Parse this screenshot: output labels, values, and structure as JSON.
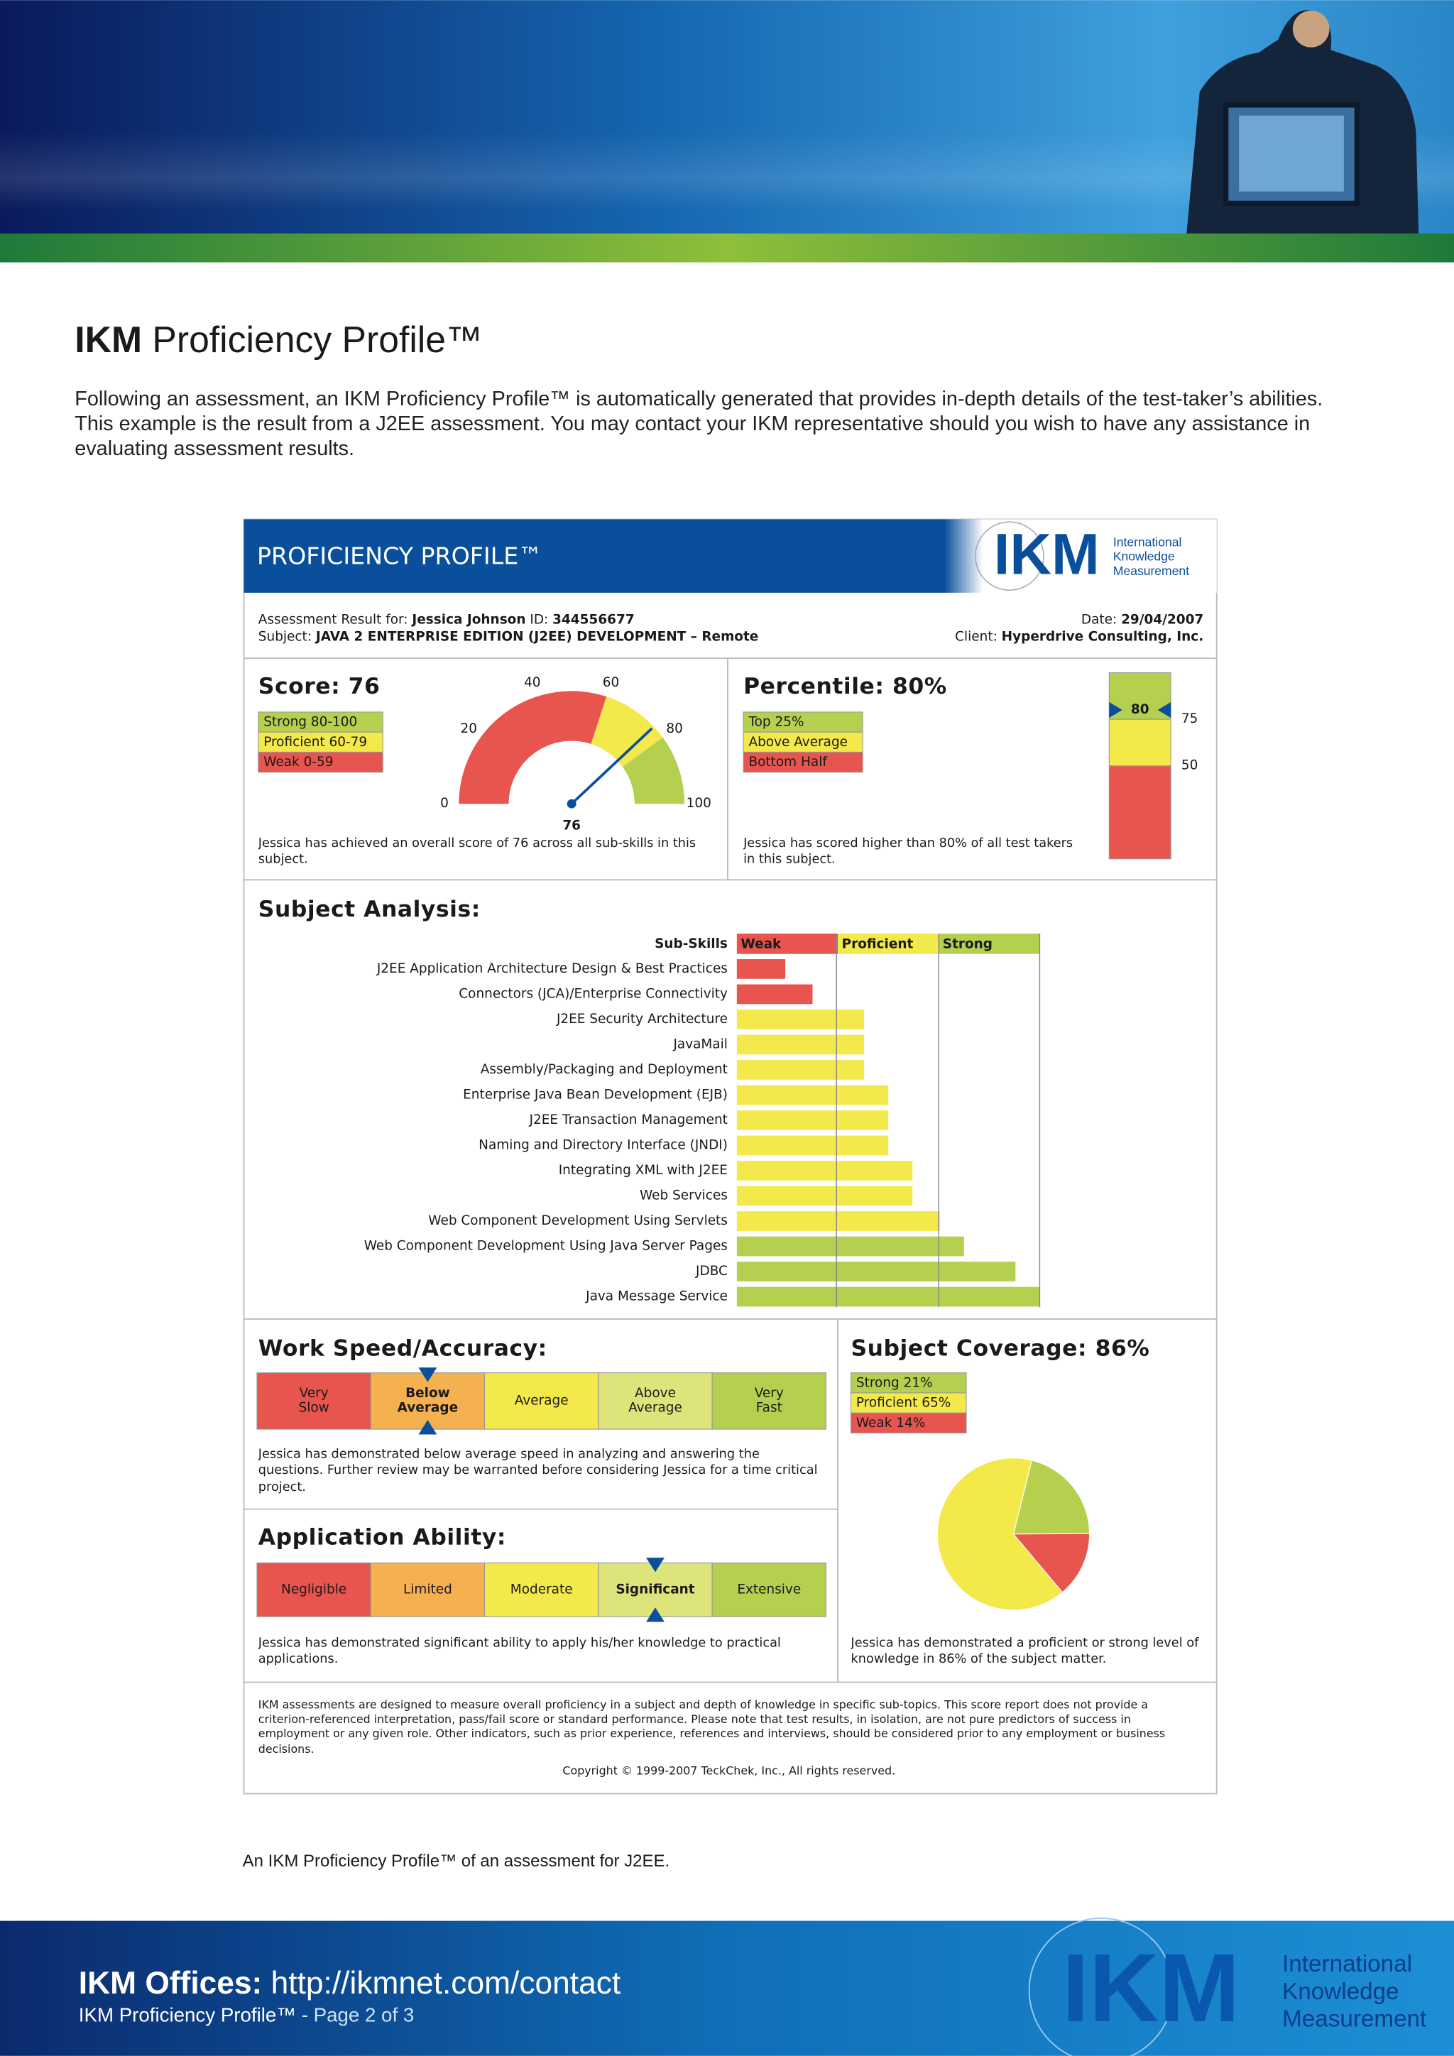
{
  "header": {
    "title_bold": "IKM",
    "title": "Proficiency Profile™",
    "intro": "Following an assessment, an IKM Proficiency Profile™ is automatically generated that provides in-depth details of the test-taker’s abilities. This example is the result from a J2EE assessment. You may contact your IKM representative should you wish to have any assistance in evaluating assessment results."
  },
  "report": {
    "banner": "PROFICIENCY PROFILE™",
    "logo": {
      "mark": "IKM",
      "name": [
        "International",
        "Knowledge",
        "Measurement"
      ]
    },
    "info": {
      "result_label": "Assessment Result for:",
      "name": "Jessica Johnson",
      "id_label": "ID:",
      "id": "344556677",
      "date_label": "Date:",
      "date": "29/04/2007",
      "subject_label": "Subject:",
      "subject": "JAVA 2 ENTERPRISE EDITION (J2EE) DEVELOPMENT – Remote",
      "client_label": "Client:",
      "client": "Hyperdrive Consulting, Inc."
    },
    "score": {
      "title": "Score: 76",
      "legend": [
        {
          "label": "Strong 80-100",
          "color": "#b5cf4f"
        },
        {
          "label": "Proficient 60-79",
          "color": "#f4e94b"
        },
        {
          "label": "Weak 0-59",
          "color": "#e8554e"
        }
      ],
      "gauge": {
        "type": "gauge",
        "value": 76,
        "xlim": [
          0,
          100
        ],
        "ticks": [
          0,
          20,
          40,
          60,
          80,
          100
        ],
        "needle_color": "#0a4f9c",
        "bands": [
          {
            "from": 0,
            "to": 60,
            "color": "#e8554e"
          },
          {
            "from": 60,
            "to": 80,
            "color": "#f4e94b"
          },
          {
            "from": 80,
            "to": 100,
            "color": "#b5cf4f"
          }
        ]
      },
      "note": "Jessica has achieved an overall score of 76 across all sub-skills in this subject."
    },
    "percentile": {
      "title": "Percentile: 80%",
      "legend": [
        {
          "label": "Top 25%",
          "color": "#b5cf4f"
        },
        {
          "label": "Above Average",
          "color": "#f4e94b"
        },
        {
          "label": "Bottom Half",
          "color": "#e8554e"
        }
      ],
      "bar": {
        "type": "level-bar",
        "value": 80,
        "ylim": [
          0,
          100
        ],
        "yticks": [
          50,
          75
        ],
        "marker_color": "#0a4f9c",
        "bands": [
          {
            "from": 0,
            "to": 50,
            "color": "#e8554e"
          },
          {
            "from": 50,
            "to": 75,
            "color": "#f4e94b"
          },
          {
            "from": 75,
            "to": 100,
            "color": "#b5cf4f"
          }
        ]
      },
      "note": "Jessica has scored higher than 80% of all test takers in this subject."
    },
    "analysis": {
      "title": "Subject Analysis:",
      "header": "Sub-Skills",
      "bands": [
        {
          "label": "Weak",
          "color": "#e8554e"
        },
        {
          "label": "Proficient",
          "color": "#f4e94b"
        },
        {
          "label": "Strong",
          "color": "#b5cf4f"
        }
      ],
      "chart": {
        "type": "bar",
        "xlim": [
          0,
          100
        ],
        "categories": [
          "J2EE Application Architecture Design & Best Practices",
          "Connectors (JCA)/Enterprise Connectivity",
          "J2EE Security Architecture",
          "JavaMail",
          "Assembly/Packaging and Deployment",
          "Enterprise Java Bean Development (EJB)",
          "J2EE Transaction Management",
          "Naming and Directory Interface (JNDI)",
          "Integrating XML with J2EE",
          "Web Services",
          "Web Component Development Using Servlets",
          "Web Component Development Using Java Server Pages",
          "JDBC",
          "Java Message Service"
        ],
        "values": [
          16,
          25,
          42,
          42,
          42,
          50,
          50,
          50,
          58,
          58,
          67,
          75,
          92,
          100
        ],
        "colors": [
          "#e8554e",
          "#e8554e",
          "#f4e94b",
          "#f4e94b",
          "#f4e94b",
          "#f4e94b",
          "#f4e94b",
          "#f4e94b",
          "#f4e94b",
          "#f4e94b",
          "#f4e94b",
          "#b5cf4f",
          "#b5cf4f",
          "#b5cf4f"
        ]
      }
    },
    "speed": {
      "title": "Work Speed/Accuracy:",
      "scale": {
        "type": "scale",
        "selected": 1,
        "marker_color": "#0a4f9c",
        "categories": [
          [
            "Very",
            "Slow"
          ],
          [
            "Below",
            "Average"
          ],
          [
            "Average"
          ],
          [
            "Above",
            "Average"
          ],
          [
            "Very",
            "Fast"
          ]
        ],
        "colors": [
          "#e8554e",
          "#f5b04f",
          "#f4e94b",
          "#dde47a",
          "#b5cf4f"
        ]
      },
      "note": "Jessica has demonstrated below average speed in analyzing and answering the questions. Further review may be warranted before considering Jessica for a time critical project."
    },
    "ability": {
      "title": "Application Ability:",
      "scale": {
        "type": "scale",
        "selected": 3,
        "marker_color": "#0a4f9c",
        "categories": [
          [
            "Negligible"
          ],
          [
            "Limited"
          ],
          [
            "Moderate"
          ],
          [
            "Significant"
          ],
          [
            "Extensive"
          ]
        ],
        "colors": [
          "#e8554e",
          "#f5b04f",
          "#f4e94b",
          "#dde47a",
          "#b5cf4f"
        ]
      },
      "note": "Jessica has demonstrated significant ability to apply his/her knowledge to practical applications."
    },
    "coverage": {
      "title": "Subject Coverage: 86%",
      "pie": {
        "type": "pie",
        "values": [
          21,
          65,
          14
        ],
        "value_labels": [
          "Strong 21%",
          "Proficient 65%",
          "Weak 14%"
        ],
        "colors": [
          "#b5cf4f",
          "#f4e94b",
          "#e8554e"
        ]
      },
      "note": "Jessica has demonstrated a proficient or strong level of knowledge in 86% of the subject matter."
    },
    "disclaimer": "IKM assessments are designed to measure overall proficiency in a subject and depth of knowledge in specific sub-topics. This score report does not provide a criterion-referenced interpretation, pass/fail score or standard performance. Please note that test results, in isolation, are not pure predictors of success in employment or any given role. Other indicators, such as prior experience, references and interviews, should be considered prior to any employment or business decisions.",
    "copyright": "Copyright © 1999-2007 TeckChek, Inc., All rights reserved."
  },
  "caption": "An IKM Proficiency Profile™ of an assessment for J2EE.",
  "footer": {
    "offices_label": "IKM Offices:",
    "url": "http://ikmnet.com/contact",
    "page_title": "IKM Proficiency Profile™",
    "page": "- Page 2 of 3",
    "logo": {
      "mark": "IKM",
      "name": [
        "International",
        "Knowledge",
        "Measurement"
      ]
    }
  }
}
